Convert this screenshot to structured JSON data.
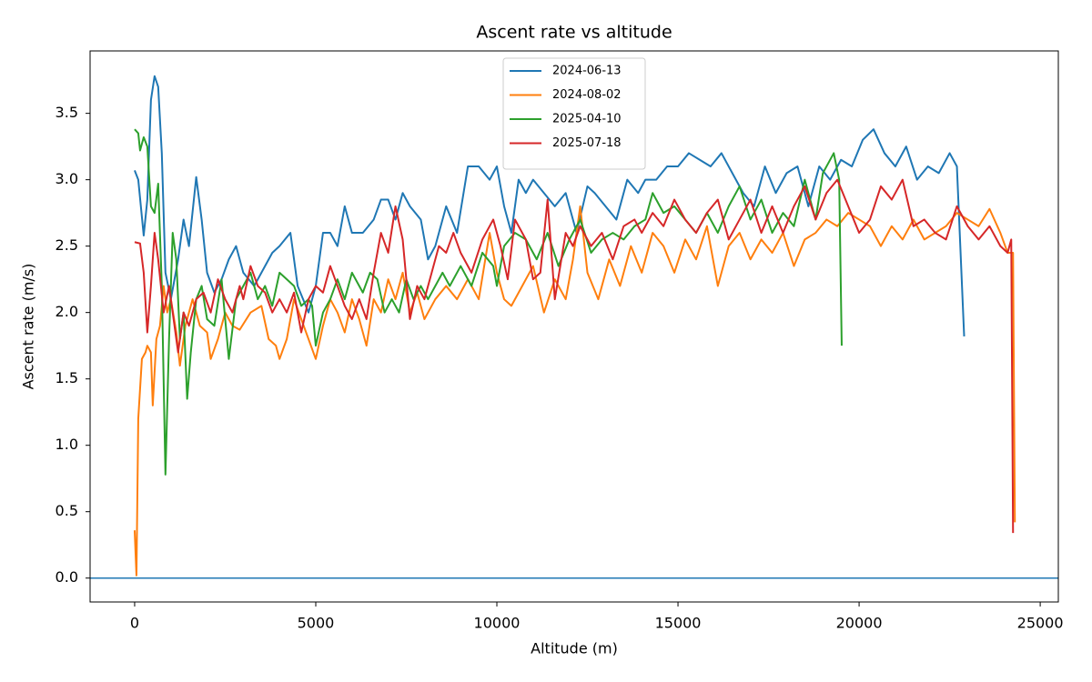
{
  "chart_data": {
    "type": "line",
    "title": "Ascent rate vs altitude",
    "x_label": "Altitude (m)",
    "y_label": "Ascent rate (m/s)",
    "xlim": [
      -1230,
      25500
    ],
    "ylim": [
      -0.18,
      3.97
    ],
    "xticks": [
      0,
      5000,
      10000,
      15000,
      20000,
      25000
    ],
    "yticks": [
      {
        "value": 0,
        "label": "0.0"
      },
      0.5,
      {
        "value": 1,
        "label": "1.0"
      },
      1.5,
      {
        "value": 2,
        "label": "2.0"
      },
      2.5,
      {
        "value": 3,
        "label": "3.0"
      },
      3.5
    ],
    "hline": {
      "value": 0,
      "color": "#1f77b4"
    },
    "legend": "upper center",
    "series": [
      {
        "name": "2024-06-13",
        "color": "#1f77b4",
        "x": [
          0,
          100,
          250,
          350,
          450,
          550,
          650,
          750,
          850,
          1000,
          1200,
          1350,
          1500,
          1700,
          1850,
          2000,
          2200,
          2400,
          2600,
          2800,
          3000,
          3300,
          3500,
          3800,
          4000,
          4300,
          4500,
          4800,
          5000,
          5200,
          5400,
          5600,
          5800,
          6000,
          6300,
          6600,
          6800,
          7000,
          7200,
          7400,
          7600,
          7900,
          8100,
          8300,
          8600,
          8900,
          9200,
          9500,
          9800,
          10000,
          10200,
          10400,
          10600,
          10800,
          11000,
          11300,
          11600,
          11900,
          12200,
          12500,
          12700,
          13000,
          13300,
          13600,
          13900,
          14100,
          14400,
          14700,
          15000,
          15300,
          15600,
          15900,
          16200,
          16500,
          16800,
          17100,
          17400,
          17700,
          18000,
          18300,
          18600,
          18900,
          19200,
          19500,
          19800,
          20100,
          20400,
          20700,
          21000,
          21300,
          21600,
          21900,
          22200,
          22500,
          22700,
          22900
        ],
        "values": [
          3.07,
          3.0,
          2.58,
          2.85,
          3.6,
          3.78,
          3.7,
          3.2,
          2.3,
          2.1,
          2.4,
          2.7,
          2.5,
          3.02,
          2.7,
          2.3,
          2.15,
          2.25,
          2.4,
          2.5,
          2.3,
          2.2,
          2.3,
          2.45,
          2.5,
          2.6,
          2.2,
          2.0,
          2.2,
          2.6,
          2.6,
          2.5,
          2.8,
          2.6,
          2.6,
          2.7,
          2.85,
          2.85,
          2.7,
          2.9,
          2.8,
          2.7,
          2.4,
          2.5,
          2.8,
          2.6,
          3.1,
          3.1,
          3.0,
          3.1,
          2.8,
          2.6,
          3.0,
          2.9,
          3.0,
          2.9,
          2.8,
          2.9,
          2.6,
          2.95,
          2.9,
          2.8,
          2.7,
          3.0,
          2.9,
          3.0,
          3.0,
          3.1,
          3.1,
          3.2,
          3.15,
          3.1,
          3.2,
          3.05,
          2.9,
          2.8,
          3.1,
          2.9,
          3.05,
          3.1,
          2.8,
          3.1,
          3.0,
          3.15,
          3.1,
          3.3,
          3.38,
          3.2,
          3.1,
          3.25,
          3.0,
          3.1,
          3.05,
          3.2,
          3.1,
          1.82
        ]
      },
      {
        "name": "2024-08-02",
        "color": "#ff7f0e",
        "x": [
          0,
          50,
          100,
          200,
          300,
          350,
          450,
          500,
          600,
          700,
          800,
          900,
          1000,
          1150,
          1250,
          1400,
          1600,
          1800,
          2000,
          2100,
          2300,
          2500,
          2700,
          2900,
          3200,
          3500,
          3700,
          3900,
          4000,
          4200,
          4400,
          4600,
          4800,
          5000,
          5200,
          5400,
          5600,
          5800,
          6000,
          6200,
          6400,
          6600,
          6800,
          7000,
          7200,
          7400,
          7600,
          7800,
          8000,
          8300,
          8600,
          8900,
          9200,
          9500,
          9800,
          10000,
          10200,
          10400,
          10700,
          11000,
          11300,
          11600,
          11900,
          12100,
          12300,
          12500,
          12800,
          13100,
          13400,
          13700,
          14000,
          14300,
          14600,
          14900,
          15200,
          15500,
          15800,
          16100,
          16400,
          16700,
          17000,
          17300,
          17600,
          17900,
          18200,
          18500,
          18800,
          19100,
          19400,
          19700,
          20000,
          20300,
          20600,
          20900,
          21200,
          21500,
          21800,
          22100,
          22400,
          22700,
          23000,
          23300,
          23600,
          23900,
          24100,
          24250,
          24300
        ],
        "values": [
          0.36,
          0.02,
          1.2,
          1.65,
          1.7,
          1.75,
          1.7,
          1.3,
          1.8,
          1.9,
          2.2,
          2.0,
          2.1,
          1.85,
          1.6,
          1.9,
          2.1,
          1.9,
          1.85,
          1.65,
          1.8,
          2.0,
          1.9,
          1.87,
          2.0,
          2.05,
          1.8,
          1.75,
          1.65,
          1.8,
          2.1,
          1.95,
          1.8,
          1.65,
          1.9,
          2.1,
          2.0,
          1.85,
          2.1,
          1.95,
          1.75,
          2.1,
          2.0,
          2.25,
          2.1,
          2.3,
          2.0,
          2.15,
          1.95,
          2.1,
          2.2,
          2.1,
          2.25,
          2.1,
          2.6,
          2.3,
          2.1,
          2.05,
          2.2,
          2.35,
          2.0,
          2.25,
          2.1,
          2.4,
          2.8,
          2.3,
          2.1,
          2.4,
          2.2,
          2.5,
          2.3,
          2.6,
          2.5,
          2.3,
          2.55,
          2.4,
          2.65,
          2.2,
          2.5,
          2.6,
          2.4,
          2.55,
          2.45,
          2.6,
          2.35,
          2.55,
          2.6,
          2.7,
          2.65,
          2.75,
          2.7,
          2.65,
          2.5,
          2.65,
          2.55,
          2.7,
          2.55,
          2.6,
          2.65,
          2.75,
          2.7,
          2.65,
          2.78,
          2.6,
          2.45,
          2.45,
          0.42
        ]
      },
      {
        "name": "2025-04-10",
        "color": "#2ca02c",
        "x": [
          0,
          100,
          150,
          250,
          350,
          450,
          550,
          650,
          750,
          850,
          950,
          1050,
          1150,
          1250,
          1350,
          1450,
          1550,
          1700,
          1850,
          2000,
          2200,
          2400,
          2600,
          2800,
          3000,
          3200,
          3400,
          3600,
          3800,
          4000,
          4200,
          4400,
          4600,
          4800,
          4900,
          5000,
          5200,
          5400,
          5600,
          5800,
          6000,
          6300,
          6500,
          6700,
          6900,
          7100,
          7300,
          7500,
          7700,
          7900,
          8100,
          8300,
          8500,
          8700,
          9000,
          9300,
          9600,
          9900,
          10000,
          10200,
          10500,
          10800,
          11100,
          11400,
          11700,
          12000,
          12300,
          12600,
          12900,
          13200,
          13500,
          13800,
          14100,
          14300,
          14600,
          14900,
          15200,
          15500,
          15800,
          16100,
          16400,
          16700,
          17000,
          17300,
          17600,
          17900,
          18200,
          18500,
          18800,
          19000,
          19300,
          19450,
          19520
        ],
        "values": [
          3.38,
          3.35,
          3.22,
          3.32,
          3.25,
          2.8,
          2.75,
          2.97,
          2.2,
          0.78,
          1.8,
          2.6,
          2.4,
          1.8,
          2.0,
          1.35,
          1.7,
          2.1,
          2.2,
          1.95,
          1.9,
          2.25,
          1.65,
          2.1,
          2.2,
          2.3,
          2.1,
          2.2,
          2.05,
          2.3,
          2.25,
          2.2,
          2.05,
          2.1,
          2.05,
          1.75,
          2.0,
          2.1,
          2.25,
          2.1,
          2.3,
          2.15,
          2.3,
          2.25,
          2.0,
          2.1,
          2.0,
          2.25,
          2.1,
          2.2,
          2.1,
          2.2,
          2.3,
          2.2,
          2.35,
          2.2,
          2.45,
          2.35,
          2.2,
          2.5,
          2.6,
          2.55,
          2.4,
          2.6,
          2.35,
          2.55,
          2.7,
          2.45,
          2.55,
          2.6,
          2.55,
          2.65,
          2.7,
          2.9,
          2.75,
          2.8,
          2.7,
          2.6,
          2.75,
          2.6,
          2.8,
          2.95,
          2.7,
          2.85,
          2.6,
          2.75,
          2.65,
          3.0,
          2.7,
          3.05,
          3.2,
          3.0,
          1.75
        ]
      },
      {
        "name": "2025-07-18",
        "color": "#d62728",
        "x": [
          0,
          150,
          250,
          350,
          450,
          550,
          650,
          800,
          950,
          1100,
          1200,
          1350,
          1500,
          1700,
          1900,
          2100,
          2300,
          2500,
          2700,
          2900,
          3000,
          3200,
          3400,
          3600,
          3800,
          4000,
          4200,
          4400,
          4600,
          4800,
          5000,
          5200,
          5400,
          5600,
          5800,
          6000,
          6200,
          6400,
          6600,
          6800,
          7000,
          7200,
          7400,
          7600,
          7800,
          8000,
          8200,
          8400,
          8600,
          8800,
          9000,
          9300,
          9600,
          9900,
          10100,
          10300,
          10500,
          10800,
          11000,
          11200,
          11400,
          11600,
          11900,
          12100,
          12300,
          12600,
          12900,
          13200,
          13500,
          13800,
          14000,
          14300,
          14600,
          14900,
          15200,
          15500,
          15800,
          16100,
          16400,
          16700,
          17000,
          17300,
          17600,
          17900,
          18200,
          18500,
          18800,
          19100,
          19400,
          19700,
          20000,
          20300,
          20600,
          20900,
          21200,
          21500,
          21800,
          22100,
          22400,
          22700,
          23000,
          23300,
          23600,
          23900,
          24100,
          24200,
          24250
        ],
        "values": [
          2.53,
          2.52,
          2.3,
          1.85,
          2.2,
          2.6,
          2.4,
          2.0,
          2.2,
          1.9,
          1.7,
          2.0,
          1.9,
          2.1,
          2.15,
          2.0,
          2.25,
          2.1,
          2.0,
          2.2,
          2.1,
          2.35,
          2.2,
          2.15,
          2.0,
          2.1,
          2.0,
          2.15,
          1.85,
          2.1,
          2.2,
          2.15,
          2.35,
          2.2,
          2.05,
          1.95,
          2.1,
          1.95,
          2.3,
          2.6,
          2.45,
          2.8,
          2.55,
          1.95,
          2.2,
          2.1,
          2.3,
          2.5,
          2.45,
          2.6,
          2.45,
          2.3,
          2.55,
          2.7,
          2.5,
          2.25,
          2.7,
          2.55,
          2.25,
          2.3,
          2.85,
          2.1,
          2.6,
          2.5,
          2.65,
          2.5,
          2.6,
          2.4,
          2.65,
          2.7,
          2.6,
          2.75,
          2.65,
          2.85,
          2.7,
          2.6,
          2.75,
          2.85,
          2.55,
          2.7,
          2.85,
          2.6,
          2.8,
          2.6,
          2.8,
          2.95,
          2.7,
          2.9,
          3.0,
          2.8,
          2.6,
          2.7,
          2.95,
          2.85,
          3.0,
          2.65,
          2.7,
          2.6,
          2.55,
          2.8,
          2.65,
          2.55,
          2.65,
          2.5,
          2.45,
          2.55,
          0.34
        ]
      }
    ]
  }
}
